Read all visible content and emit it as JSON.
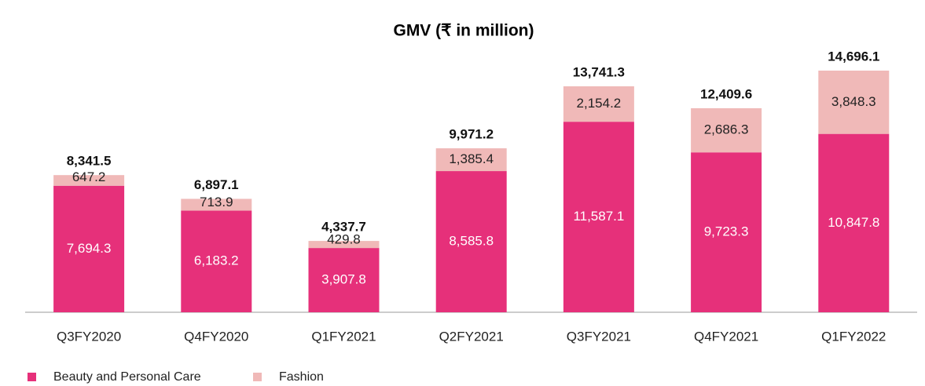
{
  "chart_data": {
    "type": "stacked_bar",
    "title": "GMV (₹ in million)",
    "categories": [
      "Q3FY2020",
      "Q4FY2020",
      "Q1FY2021",
      "Q2FY2021",
      "Q3FY2021",
      "Q4FY2021",
      "Q1FY2022"
    ],
    "series": [
      {
        "name": "Beauty and Personal Care",
        "color": "#e6307a",
        "values": [
          7694.3,
          6183.2,
          3907.8,
          8585.8,
          11587.1,
          9723.3,
          10847.8
        ],
        "value_labels": [
          "7,694.3",
          "6,183.2",
          "3,907.8",
          "8,585.8",
          "11,587.1",
          "9,723.3",
          "10,847.8"
        ]
      },
      {
        "name": "Fashion",
        "color": "#f0b9b8",
        "values": [
          647.2,
          713.9,
          429.8,
          1385.4,
          2154.2,
          2686.3,
          3848.3
        ],
        "value_labels": [
          "647.2",
          "713.9",
          "429.8",
          "1,385.4",
          "2,154.2",
          "2,686.3",
          "3,848.3"
        ]
      }
    ],
    "totals": {
      "values": [
        8341.5,
        6897.1,
        4337.7,
        9971.2,
        13741.3,
        12409.6,
        14696.1
      ],
      "value_labels": [
        "8,341.5",
        "6,897.1",
        "4,337.7",
        "9,971.2",
        "13,741.3",
        "12,409.6",
        "14,696.1"
      ]
    },
    "legend": "bottom-left"
  }
}
